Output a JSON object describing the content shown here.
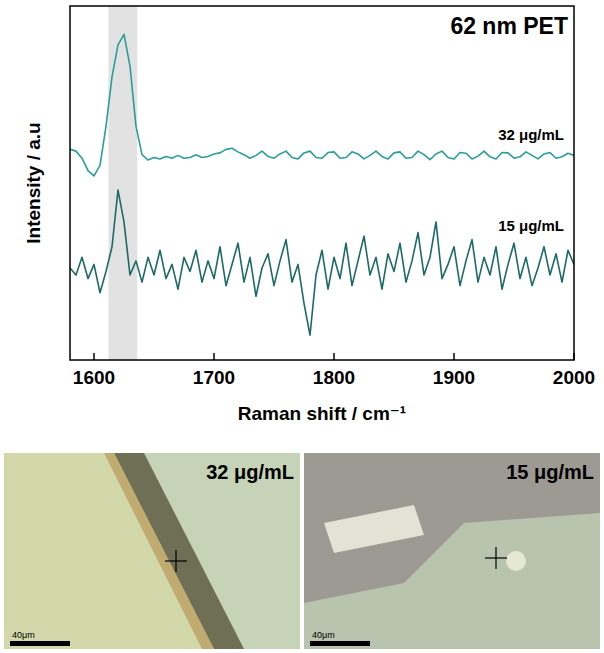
{
  "chart_data": {
    "type": "line",
    "title": "62 nm PET",
    "x_label": "Raman shift / cm⁻¹",
    "y_label": "Intensity / a.u",
    "xlim": [
      1580,
      2000
    ],
    "xticks": [
      1600,
      1700,
      1800,
      1900,
      2000
    ],
    "ylim": [
      0,
      10
    ],
    "tick_labels": "x",
    "grid": false,
    "band": [
      1612,
      1636
    ],
    "x": [
      1580,
      1585,
      1590,
      1595,
      1600,
      1605,
      1610,
      1615,
      1620,
      1625,
      1630,
      1635,
      1640,
      1645,
      1650,
      1655,
      1660,
      1665,
      1670,
      1675,
      1680,
      1685,
      1690,
      1695,
      1700,
      1705,
      1710,
      1715,
      1720,
      1725,
      1730,
      1735,
      1740,
      1745,
      1750,
      1755,
      1760,
      1765,
      1770,
      1775,
      1780,
      1785,
      1790,
      1795,
      1800,
      1805,
      1810,
      1815,
      1820,
      1825,
      1830,
      1835,
      1840,
      1845,
      1850,
      1855,
      1860,
      1865,
      1870,
      1875,
      1880,
      1885,
      1890,
      1895,
      1900,
      1905,
      1910,
      1915,
      1920,
      1925,
      1930,
      1935,
      1940,
      1945,
      1950,
      1955,
      1960,
      1965,
      1970,
      1975,
      1980,
      1985,
      1990,
      1995,
      2000
    ],
    "series": [
      {
        "name": "32 μg/mL",
        "color": "#2a9e98",
        "values": [
          5.95,
          5.9,
          5.7,
          5.35,
          5.2,
          5.5,
          6.6,
          8.0,
          8.9,
          9.2,
          8.3,
          6.6,
          5.8,
          5.65,
          5.72,
          5.68,
          5.75,
          5.7,
          5.78,
          5.7,
          5.72,
          5.8,
          5.72,
          5.75,
          5.82,
          5.85,
          5.95,
          5.98,
          5.88,
          5.8,
          5.7,
          5.78,
          5.9,
          5.75,
          5.7,
          5.82,
          5.9,
          5.72,
          5.68,
          5.85,
          5.9,
          5.72,
          5.7,
          5.86,
          5.88,
          5.7,
          5.72,
          5.88,
          5.82,
          5.68,
          5.78,
          5.9,
          5.75,
          5.68,
          5.85,
          5.88,
          5.7,
          5.72,
          5.9,
          5.8,
          5.66,
          5.82,
          5.9,
          5.72,
          5.68,
          5.86,
          5.84,
          5.68,
          5.76,
          5.9,
          5.74,
          5.68,
          5.86,
          5.85,
          5.7,
          5.74,
          5.88,
          5.78,
          5.68,
          5.82,
          5.86,
          5.7,
          5.74,
          5.84,
          5.78
        ]
      },
      {
        "name": "15 μg/mL",
        "color": "#1c6a66",
        "values": [
          2.6,
          2.4,
          2.9,
          2.3,
          2.7,
          1.9,
          2.5,
          3.2,
          4.8,
          3.9,
          2.4,
          2.8,
          2.2,
          2.9,
          2.4,
          3.1,
          2.3,
          2.7,
          2.0,
          2.9,
          2.5,
          3.1,
          2.2,
          2.8,
          2.3,
          3.2,
          2.1,
          2.7,
          3.3,
          2.2,
          2.9,
          1.8,
          2.6,
          3.0,
          2.1,
          2.8,
          3.4,
          2.2,
          2.7,
          1.6,
          0.7,
          2.4,
          3.1,
          2.0,
          2.9,
          2.3,
          3.3,
          2.1,
          2.8,
          3.5,
          2.4,
          2.9,
          2.0,
          3.0,
          2.5,
          3.3,
          2.2,
          2.8,
          3.6,
          2.4,
          2.9,
          3.9,
          2.3,
          2.7,
          3.2,
          2.1,
          2.8,
          3.4,
          2.2,
          2.9,
          2.4,
          3.2,
          2.0,
          2.7,
          3.3,
          2.3,
          2.9,
          2.1,
          2.6,
          3.2,
          2.4,
          3.0,
          2.2,
          3.1,
          2.7
        ]
      }
    ]
  },
  "micrographs": [
    {
      "label": "32 μg/mL",
      "scale_bar": "40μm"
    },
    {
      "label": "15 μg/mL",
      "scale_bar": "40μm"
    }
  ]
}
